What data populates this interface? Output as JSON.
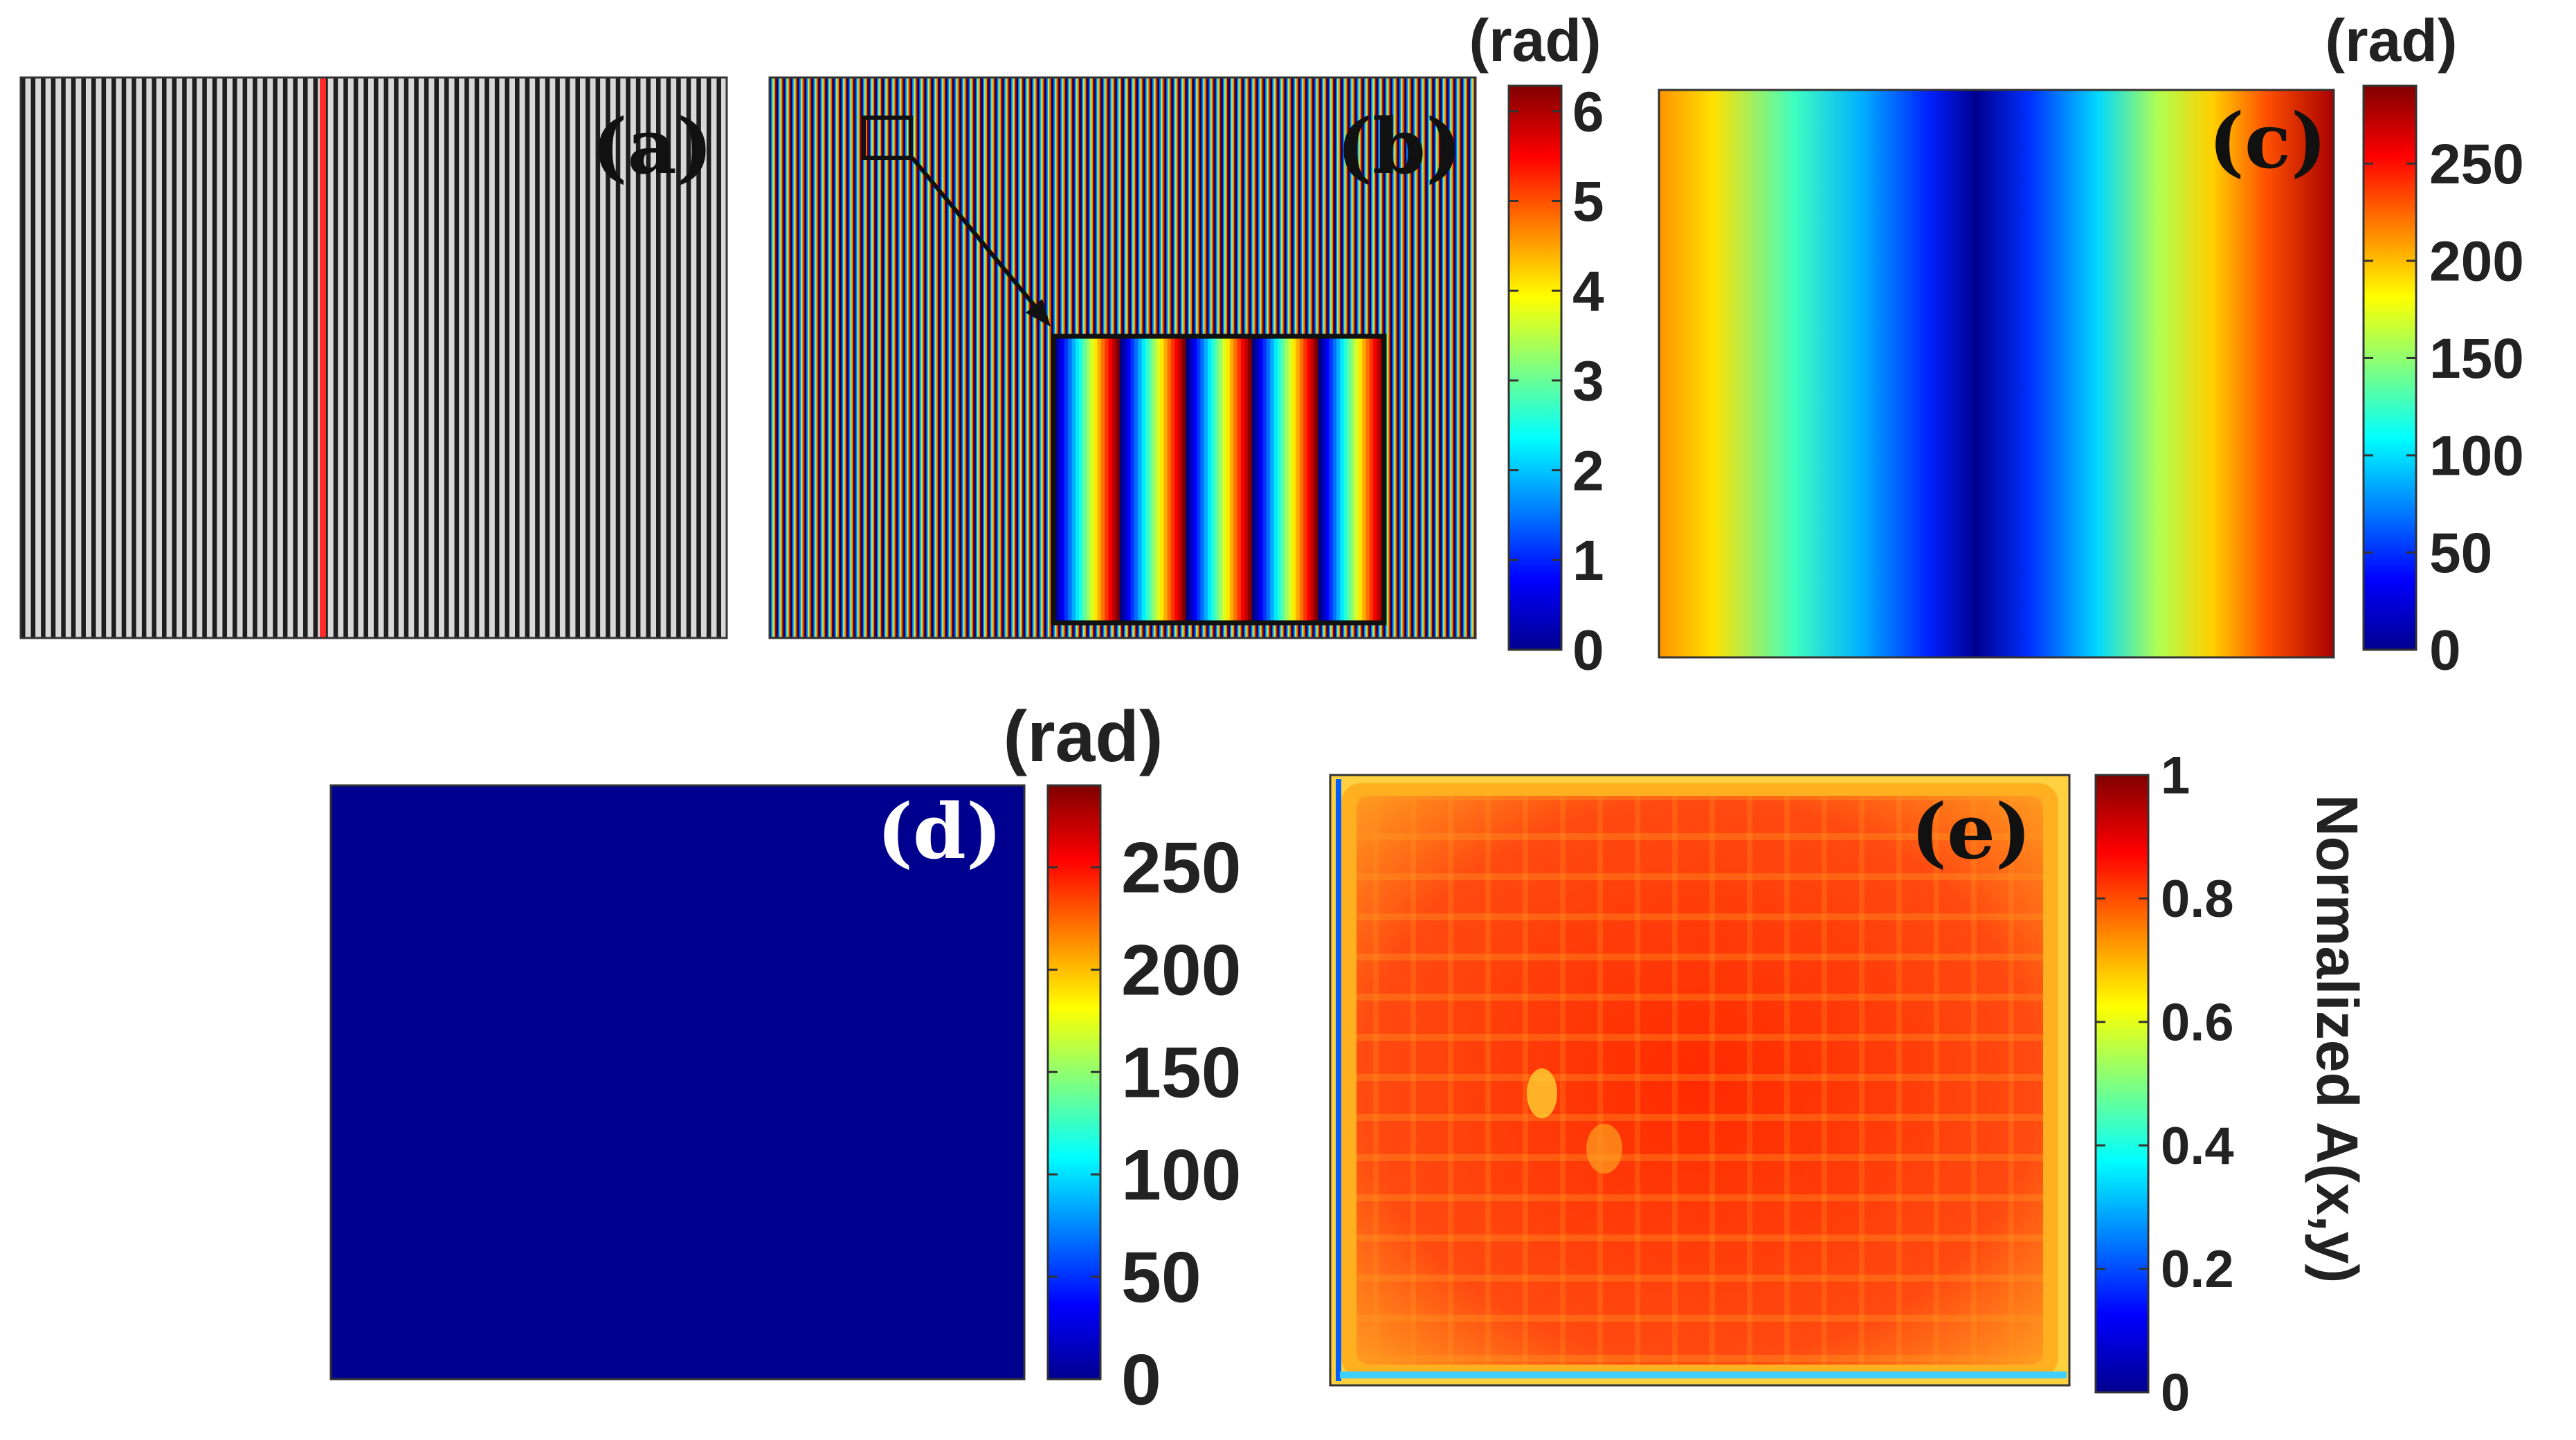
{
  "figure": {
    "panels": [
      {
        "id": "a",
        "label": "(a)",
        "kind": "fringe-pattern",
        "fringe_periods": 70,
        "marker_color": "#ff2a2a"
      },
      {
        "id": "b",
        "label": "(b)",
        "kind": "wrapped-phase",
        "fringe_periods": 100,
        "inset_periods": 5,
        "colorbar": {
          "unit": "(rad)",
          "ticks": [
            "0",
            "1",
            "2",
            "3",
            "4",
            "5",
            "6"
          ],
          "min": 0,
          "max": 6.2832
        }
      },
      {
        "id": "c",
        "label": "(c)",
        "kind": "unwrapped-phase",
        "colorbar": {
          "unit": "(rad)",
          "ticks": [
            "0",
            "50",
            "100",
            "150",
            "200",
            "250"
          ],
          "min": 0,
          "max": 290
        }
      },
      {
        "id": "d",
        "label": "(d)",
        "kind": "uniform-phase",
        "colorbar": {
          "unit": "(rad)",
          "ticks": [
            "0",
            "50",
            "100",
            "150",
            "200",
            "250"
          ],
          "min": 0,
          "max": 290
        }
      },
      {
        "id": "e",
        "label": "(e)",
        "kind": "normalized-amplitude",
        "colorbar": {
          "unit": "Normalized A(x,y)",
          "ticks": [
            "0",
            "0.2",
            "0.4",
            "0.6",
            "0.8",
            "1"
          ],
          "min": 0,
          "max": 1
        }
      }
    ],
    "colors": {
      "jet_dark_blue": "#00008f",
      "jet_blue": "#0000ff",
      "jet_cyan": "#00ffff",
      "jet_yellow": "#ffff00",
      "jet_red": "#ff0000",
      "jet_dark_red": "#800000",
      "amplitude_fill": "#ff3a0a",
      "amplitude_edge": "#ffcc20"
    }
  }
}
